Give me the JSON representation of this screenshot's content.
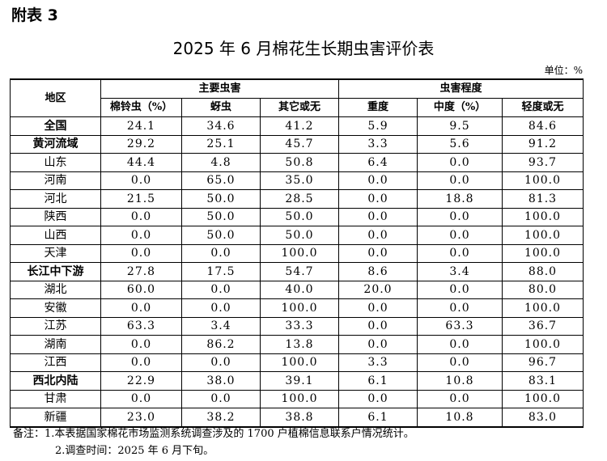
{
  "appendix_label": "附表 3",
  "title": "2025 年 6 月棉花生长期虫害评价表",
  "unit": "单位：%",
  "header": {
    "region": "地区",
    "group_main": "主要虫害",
    "group_degree": "虫害程度",
    "cols": [
      "棉铃虫（%）",
      "蚜虫",
      "其它或无",
      "重度",
      "中度（%）",
      "轻度或无"
    ]
  },
  "rows": [
    {
      "region": "全国",
      "bold": true,
      "v": [
        "24.1",
        "34.6",
        "41.2",
        "5.9",
        "9.5",
        "84.6"
      ]
    },
    {
      "region": "黄河流域",
      "bold": true,
      "v": [
        "29.2",
        "25.1",
        "45.7",
        "3.3",
        "5.6",
        "91.2"
      ]
    },
    {
      "region": "山东",
      "bold": false,
      "v": [
        "44.4",
        "4.8",
        "50.8",
        "6.4",
        "0.0",
        "93.7"
      ]
    },
    {
      "region": "河南",
      "bold": false,
      "v": [
        "0.0",
        "65.0",
        "35.0",
        "0.0",
        "0.0",
        "100.0"
      ]
    },
    {
      "region": "河北",
      "bold": false,
      "v": [
        "21.5",
        "50.0",
        "28.5",
        "0.0",
        "18.8",
        "81.3"
      ]
    },
    {
      "region": "陕西",
      "bold": false,
      "v": [
        "0.0",
        "50.0",
        "50.0",
        "0.0",
        "0.0",
        "100.0"
      ]
    },
    {
      "region": "山西",
      "bold": false,
      "v": [
        "0.0",
        "50.0",
        "50.0",
        "0.0",
        "0.0",
        "100.0"
      ]
    },
    {
      "region": "天津",
      "bold": false,
      "v": [
        "0.0",
        "0.0",
        "100.0",
        "0.0",
        "0.0",
        "100.0"
      ]
    },
    {
      "region": "长江中下游",
      "bold": true,
      "v": [
        "27.8",
        "17.5",
        "54.7",
        "8.6",
        "3.4",
        "88.0"
      ]
    },
    {
      "region": "湖北",
      "bold": false,
      "v": [
        "60.0",
        "0.0",
        "40.0",
        "20.0",
        "0.0",
        "80.0"
      ]
    },
    {
      "region": "安徽",
      "bold": false,
      "v": [
        "0.0",
        "0.0",
        "100.0",
        "0.0",
        "0.0",
        "100.0"
      ]
    },
    {
      "region": "江苏",
      "bold": false,
      "v": [
        "63.3",
        "3.4",
        "33.3",
        "0.0",
        "63.3",
        "36.7"
      ]
    },
    {
      "region": "湖南",
      "bold": false,
      "v": [
        "0.0",
        "86.2",
        "13.8",
        "0.0",
        "0.0",
        "100.0"
      ]
    },
    {
      "region": "江西",
      "bold": false,
      "v": [
        "0.0",
        "0.0",
        "100.0",
        "3.3",
        "0.0",
        "96.7"
      ]
    },
    {
      "region": "西北内陆",
      "bold": true,
      "v": [
        "22.9",
        "38.0",
        "39.1",
        "6.1",
        "10.8",
        "83.1"
      ]
    },
    {
      "region": "甘肃",
      "bold": false,
      "v": [
        "0.0",
        "0.0",
        "100.0",
        "0.0",
        "0.0",
        "100.0"
      ]
    },
    {
      "region": "新疆",
      "bold": false,
      "v": [
        "23.0",
        "38.2",
        "38.8",
        "6.1",
        "10.8",
        "83.0"
      ]
    }
  ],
  "notes": [
    "备注：1.本表据国家棉花市场监测系统调查涉及的 1700 户植棉信息联系户情况统计。",
    "2.调查时间：2025 年 6 月下旬。"
  ]
}
